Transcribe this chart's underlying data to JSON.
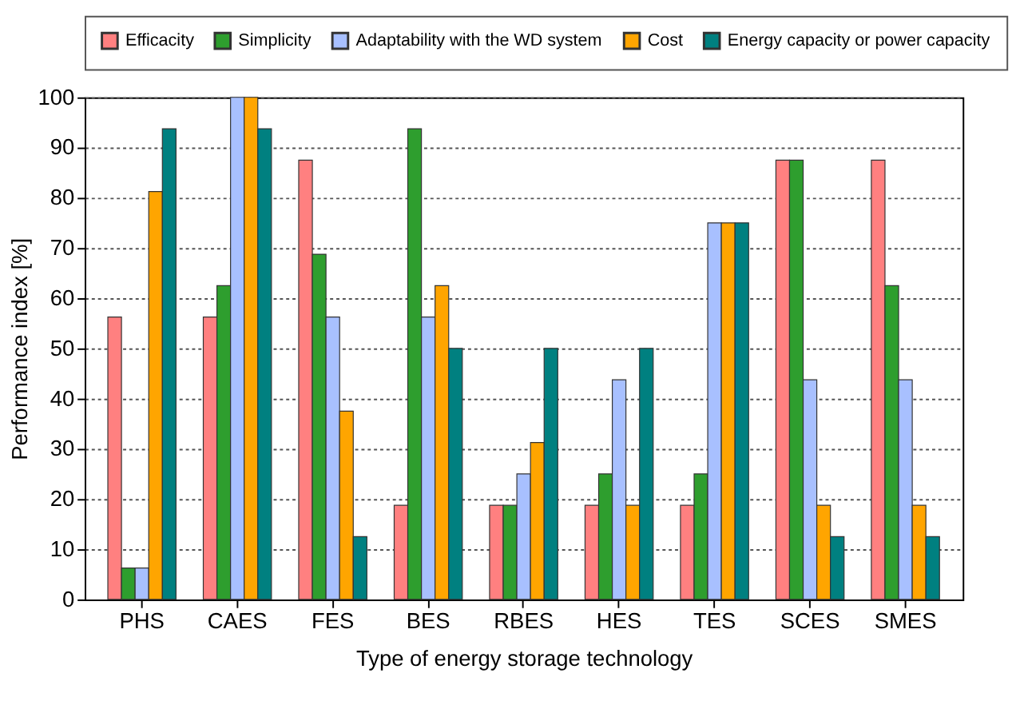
{
  "chart_data": {
    "type": "bar",
    "xlabel": "Type of energy storage technology",
    "ylabel": "Performance index [%]",
    "categories": [
      "PHS",
      "CAES",
      "FES",
      "BES",
      "RBES",
      "HES",
      "TES",
      "SCES",
      "SMES"
    ],
    "series": [
      {
        "name": "Efficacity",
        "color": "#ff8080",
        "values": [
          56.25,
          56.25,
          87.5,
          18.75,
          18.75,
          18.75,
          18.75,
          87.5,
          87.5
        ]
      },
      {
        "name": "Simplicity",
        "color": "#2e9e2e",
        "values": [
          6.25,
          62.5,
          68.75,
          93.75,
          18.75,
          25,
          25,
          87.5,
          62.5
        ]
      },
      {
        "name": "Adaptability with the WD system",
        "color": "#a8c0ff",
        "values": [
          6.25,
          100,
          56.25,
          56.25,
          25,
          43.75,
          75,
          43.75,
          43.75
        ]
      },
      {
        "name": "Cost",
        "color": "#ffa500",
        "values": [
          81.25,
          100,
          37.5,
          62.5,
          31.25,
          18.75,
          75,
          18.75,
          18.75
        ]
      },
      {
        "name": "Energy capacity or power capacity",
        "color": "#008080",
        "values": [
          93.75,
          93.75,
          12.5,
          50,
          50,
          50,
          75,
          12.5,
          12.5
        ]
      }
    ],
    "ylim": [
      0,
      100
    ],
    "yticks": [
      0,
      10,
      20,
      30,
      40,
      50,
      60,
      70,
      80,
      90,
      100
    ],
    "grid": "y",
    "legend": "top"
  }
}
